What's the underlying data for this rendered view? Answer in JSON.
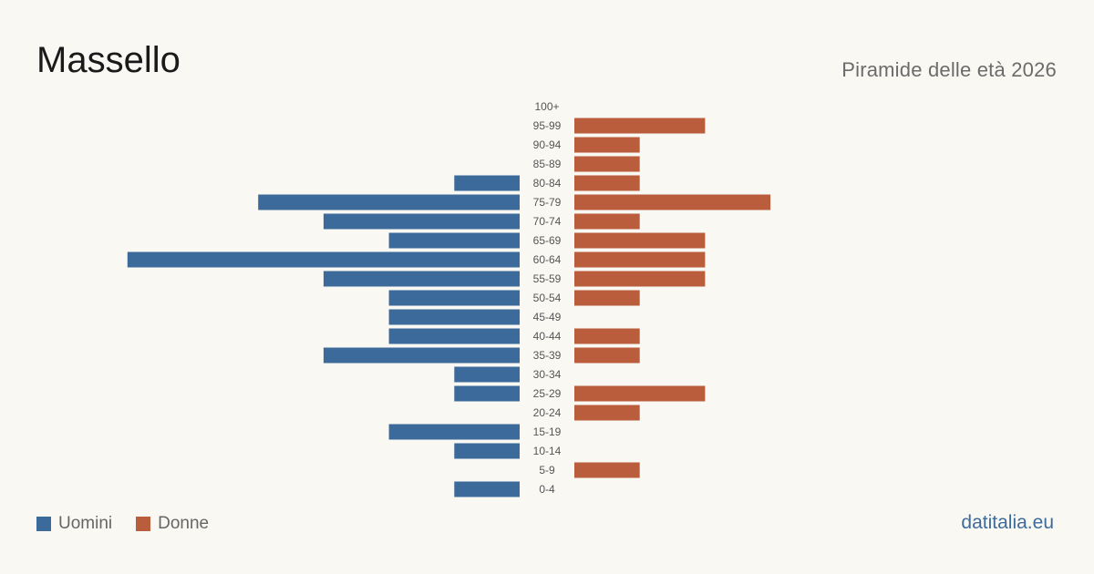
{
  "title": "Massello",
  "subtitle": "Piramide delle età 2026",
  "brand": "datitalia.eu",
  "colors": {
    "men": "#3b6a9b",
    "women": "#b95d3c",
    "background": "#faf8f3"
  },
  "legend": {
    "men_label": "Uomini",
    "women_label": "Donne"
  },
  "chart_data": {
    "type": "bar",
    "orientation": "horizontal",
    "categories": [
      "100+",
      "95-99",
      "90-94",
      "85-89",
      "80-84",
      "75-79",
      "70-74",
      "65-69",
      "60-64",
      "55-59",
      "50-54",
      "45-49",
      "40-44",
      "35-39",
      "30-34",
      "25-29",
      "20-24",
      "15-19",
      "10-14",
      "5-9",
      "0-4"
    ],
    "series": [
      {
        "name": "Uomini",
        "values": [
          0,
          0,
          0,
          0,
          1,
          4,
          3,
          2,
          6,
          3,
          2,
          2,
          2,
          3,
          1,
          1,
          0,
          2,
          1,
          0,
          1
        ]
      },
      {
        "name": "Donne",
        "values": [
          0,
          2,
          1,
          1,
          1,
          3,
          1,
          2,
          2,
          2,
          1,
          0,
          1,
          1,
          0,
          2,
          1,
          0,
          0,
          1,
          0
        ]
      }
    ],
    "legend_position": "bottom-left",
    "grid": false
  }
}
